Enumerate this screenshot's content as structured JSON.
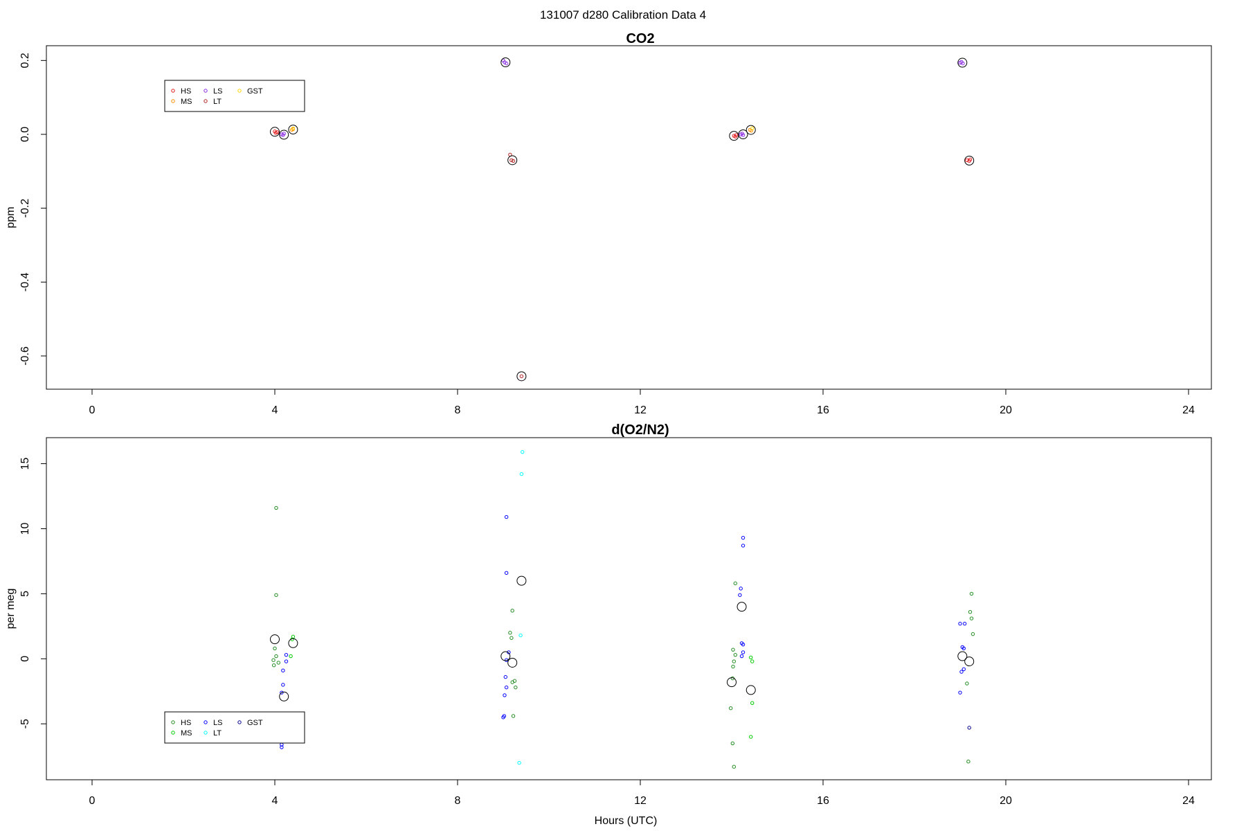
{
  "figure": {
    "suptitle": "131007   d280   Calibration Data 4",
    "xlabel": "Hours (UTC)"
  },
  "chart_data": [
    {
      "type": "scatter",
      "title": "CO2",
      "ylabel": "ppm",
      "xlabel": "",
      "xlim": [
        -1,
        24.5
      ],
      "ylim": [
        -0.69,
        0.24
      ],
      "x_ticks": [
        0,
        4,
        8,
        12,
        16,
        20,
        24
      ],
      "y_ticks": [
        0.2,
        0.0,
        -0.2,
        -0.4,
        -0.6
      ],
      "y_tick_labels": [
        "0.2",
        "0.0",
        "-0.2",
        "-0.4",
        "-0.6"
      ],
      "legend": {
        "position": "top-left",
        "entries": [
          {
            "name": "HS",
            "color": "#e31a1c"
          },
          {
            "name": "LS",
            "color": "#8a2be2"
          },
          {
            "name": "GST",
            "color": "#ffd700"
          },
          {
            "name": "MS",
            "color": "#ff8c00"
          },
          {
            "name": "LT",
            "color": "#b22222"
          }
        ]
      },
      "series": [
        {
          "name": "HS",
          "color": "#e31a1c",
          "points": [
            [
              4.0,
              0.008
            ],
            [
              4.02,
              0.004
            ],
            [
              4.05,
              0.006
            ],
            [
              14.05,
              -0.004
            ],
            [
              14.08,
              -0.006
            ],
            [
              14.1,
              -0.002
            ],
            [
              19.15,
              -0.07
            ],
            [
              19.2,
              -0.072
            ],
            [
              19.22,
              -0.068
            ]
          ]
        },
        {
          "name": "MS",
          "color": "#ff8c00",
          "points": [
            [
              4.37,
              0.012
            ],
            [
              4.4,
              0.014
            ],
            [
              14.4,
              0.012
            ],
            [
              14.43,
              0.01
            ]
          ]
        },
        {
          "name": "LS",
          "color": "#8a2be2",
          "points": [
            [
              4.15,
              0.0
            ],
            [
              4.18,
              -0.002
            ],
            [
              4.2,
              0.002
            ],
            [
              9.0,
              0.2
            ],
            [
              9.03,
              0.195
            ],
            [
              9.07,
              0.192
            ],
            [
              14.2,
              0.0
            ],
            [
              14.23,
              0.002
            ],
            [
              14.25,
              -0.002
            ],
            [
              19.0,
              0.194
            ],
            [
              19.03,
              0.196
            ],
            [
              19.06,
              0.192
            ]
          ]
        },
        {
          "name": "LT",
          "color": "#b22222",
          "points": [
            [
              9.15,
              -0.055
            ],
            [
              9.18,
              -0.07
            ],
            [
              9.22,
              -0.072
            ],
            [
              9.4,
              -0.655
            ]
          ]
        },
        {
          "name": "GST",
          "color": "#ffd700",
          "points": [
            [
              4.4,
              0.016
            ],
            [
              14.45,
              0.016
            ]
          ]
        }
      ],
      "means": {
        "color": "#000000",
        "points": [
          [
            4.0,
            0.007
          ],
          [
            4.2,
            -0.001
          ],
          [
            4.4,
            0.013
          ],
          [
            9.05,
            0.195
          ],
          [
            9.2,
            -0.07
          ],
          [
            9.4,
            -0.655
          ],
          [
            14.05,
            -0.004
          ],
          [
            14.25,
            0.0
          ],
          [
            14.42,
            0.012
          ],
          [
            19.05,
            0.194
          ],
          [
            19.2,
            -0.071
          ]
        ]
      }
    },
    {
      "type": "scatter",
      "title": "d(O2/N2)",
      "ylabel": "per meg",
      "xlabel": "Hours (UTC)",
      "xlim": [
        -1,
        24.5
      ],
      "ylim": [
        -9.3,
        17.0
      ],
      "x_ticks": [
        0,
        4,
        8,
        12,
        16,
        20,
        24
      ],
      "y_ticks": [
        15,
        10,
        5,
        0,
        -5
      ],
      "y_tick_labels": [
        "15",
        "10",
        "5",
        "0",
        "-5"
      ],
      "legend": {
        "position": "bottom-left",
        "entries": [
          {
            "name": "HS",
            "color": "#228b22"
          },
          {
            "name": "LS",
            "color": "#0000ff"
          },
          {
            "name": "GST",
            "color": "#00008b"
          },
          {
            "name": "MS",
            "color": "#00cc00"
          },
          {
            "name": "LT",
            "color": "#00ffff"
          }
        ]
      },
      "series": [
        {
          "name": "HS",
          "color": "#228b22",
          "points": [
            [
              4.03,
              11.6
            ],
            [
              4.03,
              4.9
            ],
            [
              4.0,
              0.8
            ],
            [
              3.97,
              -0.1
            ],
            [
              4.03,
              0.2
            ],
            [
              4.08,
              -0.3
            ],
            [
              3.98,
              -0.5
            ],
            [
              9.2,
              3.7
            ],
            [
              9.15,
              2.0
            ],
            [
              9.18,
              1.6
            ],
            [
              9.25,
              -1.7
            ],
            [
              9.2,
              -1.8
            ],
            [
              9.27,
              -2.2
            ],
            [
              9.22,
              -4.4
            ],
            [
              14.08,
              5.8
            ],
            [
              14.03,
              0.7
            ],
            [
              14.08,
              0.3
            ],
            [
              14.05,
              -0.2
            ],
            [
              14.03,
              -0.6
            ],
            [
              14.02,
              -1.5
            ],
            [
              13.98,
              -3.8
            ],
            [
              14.02,
              -6.5
            ],
            [
              14.05,
              -8.3
            ],
            [
              19.25,
              5.0
            ],
            [
              19.22,
              3.6
            ],
            [
              19.25,
              3.1
            ],
            [
              19.28,
              1.9
            ],
            [
              19.15,
              -1.9
            ],
            [
              19.18,
              -7.9
            ]
          ]
        },
        {
          "name": "MS",
          "color": "#00cc00",
          "points": [
            [
              4.4,
              1.7
            ],
            [
              4.38,
              1.5
            ],
            [
              4.35,
              0.2
            ],
            [
              14.42,
              0.1
            ],
            [
              14.45,
              -0.2
            ],
            [
              14.45,
              -3.4
            ],
            [
              14.42,
              -6.0
            ]
          ]
        },
        {
          "name": "LS",
          "color": "#0000ff",
          "points": [
            [
              9.07,
              10.9
            ],
            [
              9.07,
              6.6
            ],
            [
              9.12,
              0.5
            ],
            [
              9.07,
              -0.1
            ],
            [
              9.05,
              -1.4
            ],
            [
              9.07,
              -2.2
            ],
            [
              9.03,
              -2.8
            ],
            [
              9.02,
              -4.4
            ],
            [
              9.0,
              -4.5
            ],
            [
              14.25,
              9.3
            ],
            [
              14.25,
              8.7
            ],
            [
              14.2,
              5.4
            ],
            [
              14.18,
              4.9
            ],
            [
              14.22,
              1.2
            ],
            [
              14.25,
              1.1
            ],
            [
              14.25,
              0.5
            ],
            [
              14.22,
              0.2
            ],
            [
              4.25,
              0.3
            ],
            [
              4.25,
              -0.2
            ],
            [
              4.18,
              -0.9
            ],
            [
              4.18,
              -2.0
            ],
            [
              4.15,
              -2.6
            ],
            [
              4.15,
              -6.6
            ],
            [
              4.15,
              -6.8
            ],
            [
              19.0,
              2.7
            ],
            [
              19.1,
              2.7
            ],
            [
              19.05,
              0.9
            ],
            [
              19.08,
              0.8
            ],
            [
              19.08,
              -0.8
            ],
            [
              19.03,
              -1.0
            ],
            [
              19.0,
              -2.6
            ]
          ]
        },
        {
          "name": "LT",
          "color": "#00ffff",
          "points": [
            [
              9.42,
              15.9
            ],
            [
              9.4,
              14.2
            ],
            [
              9.38,
              1.8
            ],
            [
              9.35,
              -8.0
            ]
          ]
        },
        {
          "name": "GST",
          "color": "#00008b",
          "points": [
            [
              19.2,
              -5.3
            ]
          ]
        }
      ],
      "means": {
        "color": "#000000",
        "points": [
          [
            4.0,
            1.5
          ],
          [
            4.4,
            1.2
          ],
          [
            4.2,
            -2.9
          ],
          [
            9.05,
            0.2
          ],
          [
            9.2,
            -0.3
          ],
          [
            9.4,
            6.0
          ],
          [
            14.0,
            -1.8
          ],
          [
            14.22,
            4.0
          ],
          [
            14.42,
            -2.4
          ],
          [
            19.05,
            0.2
          ],
          [
            19.2,
            -0.2
          ]
        ]
      }
    }
  ]
}
